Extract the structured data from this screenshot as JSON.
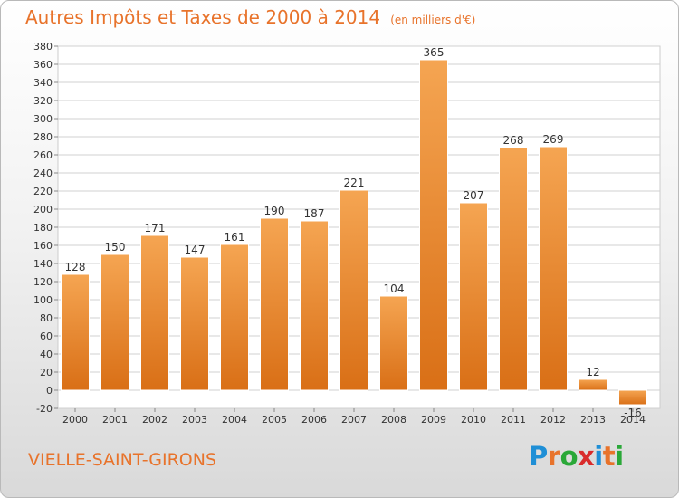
{
  "header": {
    "title": "Autres Impôts et Taxes de 2000 à 2014",
    "unit": "(en milliers d'€)"
  },
  "footer": {
    "commune": "VIELLE-SAINT-GIRONS",
    "brand": "Proxiti",
    "brand_letter_colors": [
      "#1f8fd6",
      "#e8732b",
      "#2aa838",
      "#d92b2b",
      "#1f8fd6",
      "#e8732b",
      "#2aa838"
    ]
  },
  "colors": {
    "accent": "#e8732b",
    "bar_light": "#f5a552",
    "bar_dark": "#d96f16",
    "grid": "#d0d0d0",
    "text": "#333333"
  },
  "chart_data": {
    "type": "bar",
    "title": "Autres Impôts et Taxes de 2000 à 2014",
    "subtitle": "(en milliers d'€)",
    "categories": [
      "2000",
      "2001",
      "2002",
      "2003",
      "2004",
      "2005",
      "2006",
      "2007",
      "2008",
      "2009",
      "2010",
      "2011",
      "2012",
      "2013",
      "2014"
    ],
    "values": [
      128,
      150,
      171,
      147,
      161,
      190,
      187,
      221,
      104,
      365,
      207,
      268,
      269,
      12,
      -16
    ],
    "data_labels": [
      "128",
      "150",
      "171",
      "147",
      "161",
      "190",
      "187",
      "221",
      "104",
      "365",
      "207",
      "268",
      "269",
      "12",
      "-16"
    ],
    "ylim": [
      -20,
      380
    ],
    "ytick_step": 20,
    "yticks": [
      "-20",
      "0",
      "20",
      "40",
      "60",
      "80",
      "100",
      "120",
      "140",
      "160",
      "180",
      "200",
      "220",
      "240",
      "260",
      "280",
      "300",
      "320",
      "340",
      "360",
      "380"
    ],
    "grid": true,
    "xlabel": "",
    "ylabel": ""
  }
}
